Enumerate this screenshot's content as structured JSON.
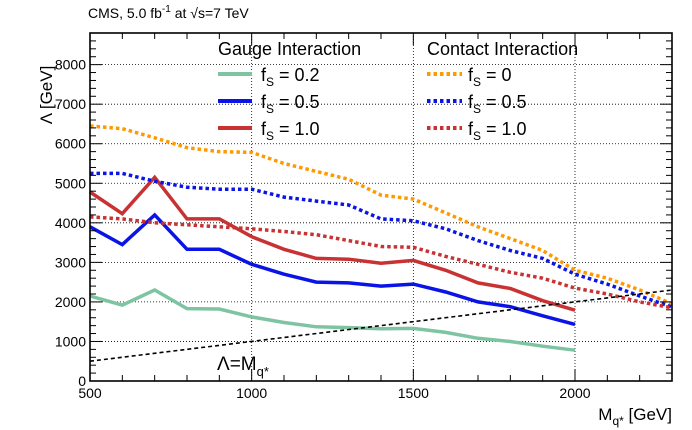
{
  "header": {
    "experiment": "CMS, 5.0 fb",
    "lumi_exp": "-1",
    "energy": " at √s=7 TeV"
  },
  "chart_data": {
    "type": "line",
    "xlabel": "M",
    "xlabel_sub": "q*",
    "xlabel_unit": " [GeV]",
    "ylabel": "Λ [GeV]",
    "xlim": [
      500,
      2300
    ],
    "ylim": [
      0,
      8800
    ],
    "xticks": [
      500,
      1000,
      1500,
      2000
    ],
    "yticks": [
      0,
      1000,
      2000,
      3000,
      4000,
      5000,
      6000,
      7000,
      8000
    ],
    "grid": "dotted",
    "legend_groups": [
      {
        "title": "Gauge Interaction",
        "series": [
          0,
          1,
          2
        ]
      },
      {
        "title": "Contact Interaction",
        "series": [
          3,
          4,
          5
        ]
      }
    ],
    "series": [
      {
        "name": "f_S = 0.2",
        "label_main": "f",
        "label_sub": "S",
        "label_rest": " = 0.2",
        "color": "#7fc4a2",
        "style": "solid",
        "x": [
          500,
          600,
          700,
          800,
          900,
          1000,
          1100,
          1200,
          1300,
          1400,
          1500,
          1600,
          1700,
          1800,
          1900,
          2000
        ],
        "y": [
          2150,
          1920,
          2300,
          1830,
          1820,
          1620,
          1480,
          1370,
          1350,
          1320,
          1330,
          1230,
          1080,
          1000,
          880,
          780
        ]
      },
      {
        "name": "f_S = 0.5",
        "label_main": "f",
        "label_sub": "S",
        "label_rest": " = 0.5",
        "color": "#0a14e6",
        "style": "solid",
        "x": [
          500,
          600,
          700,
          800,
          900,
          1000,
          1100,
          1200,
          1300,
          1400,
          1500,
          1600,
          1700,
          1800,
          1900,
          2000
        ],
        "y": [
          3900,
          3450,
          4200,
          3330,
          3330,
          2950,
          2700,
          2500,
          2480,
          2400,
          2450,
          2250,
          2000,
          1880,
          1650,
          1430
        ]
      },
      {
        "name": "f_S = 1.0",
        "label_main": "f",
        "label_sub": "S",
        "label_rest": " = 1.0",
        "color": "#c83232",
        "style": "solid",
        "x": [
          500,
          600,
          700,
          800,
          900,
          1000,
          1100,
          1200,
          1300,
          1400,
          1500,
          1600,
          1700,
          1800,
          1900,
          2000
        ],
        "y": [
          4780,
          4230,
          5150,
          4100,
          4100,
          3650,
          3330,
          3100,
          3080,
          2980,
          3050,
          2800,
          2480,
          2340,
          2030,
          1790
        ]
      },
      {
        "name": "f_S = 0",
        "label_main": "f",
        "label_sub": "S",
        "label_rest": " = 0",
        "color": "#ff9900",
        "style": "dotted",
        "x": [
          500,
          600,
          700,
          800,
          900,
          1000,
          1100,
          1200,
          1300,
          1400,
          1500,
          1600,
          1700,
          1800,
          1900,
          2000,
          2100,
          2200,
          2300
        ],
        "y": [
          6450,
          6380,
          6150,
          5900,
          5800,
          5780,
          5500,
          5300,
          5100,
          4700,
          4600,
          4250,
          3900,
          3600,
          3300,
          2800,
          2600,
          2300,
          1950
        ]
      },
      {
        "name": "f_S = 0.5",
        "label_main": "f",
        "label_sub": "S",
        "label_rest": " = 0.5",
        "color": "#0a14e6",
        "style": "dotted",
        "x": [
          500,
          600,
          700,
          800,
          900,
          1000,
          1100,
          1200,
          1300,
          1400,
          1500,
          1600,
          1700,
          1800,
          1900,
          2000,
          2100,
          2200,
          2300
        ],
        "y": [
          5250,
          5250,
          5050,
          4900,
          4850,
          4850,
          4650,
          4550,
          4450,
          4100,
          4050,
          3850,
          3550,
          3300,
          3100,
          2700,
          2450,
          2150,
          1870
        ]
      },
      {
        "name": "f_S = 1.0",
        "label_main": "f",
        "label_sub": "S",
        "label_rest": " = 1.0",
        "color": "#c83232",
        "style": "dotted",
        "x": [
          500,
          600,
          700,
          800,
          900,
          1000,
          1100,
          1200,
          1300,
          1400,
          1500,
          1600,
          1700,
          1800,
          1900,
          2000,
          2100,
          2200,
          2300
        ],
        "y": [
          4150,
          4100,
          4000,
          3950,
          3900,
          3850,
          3780,
          3700,
          3550,
          3400,
          3380,
          3150,
          2950,
          2750,
          2600,
          2350,
          2200,
          2000,
          1850
        ]
      },
      {
        "name": "Λ=M_q*",
        "color": "#000000",
        "style": "dashed",
        "x": [
          500,
          2300
        ],
        "y": [
          500,
          2300
        ]
      }
    ],
    "annotations": [
      {
        "text_main": "Λ=M",
        "text_sub": "q*",
        "x": 920,
        "y": 920
      }
    ]
  }
}
